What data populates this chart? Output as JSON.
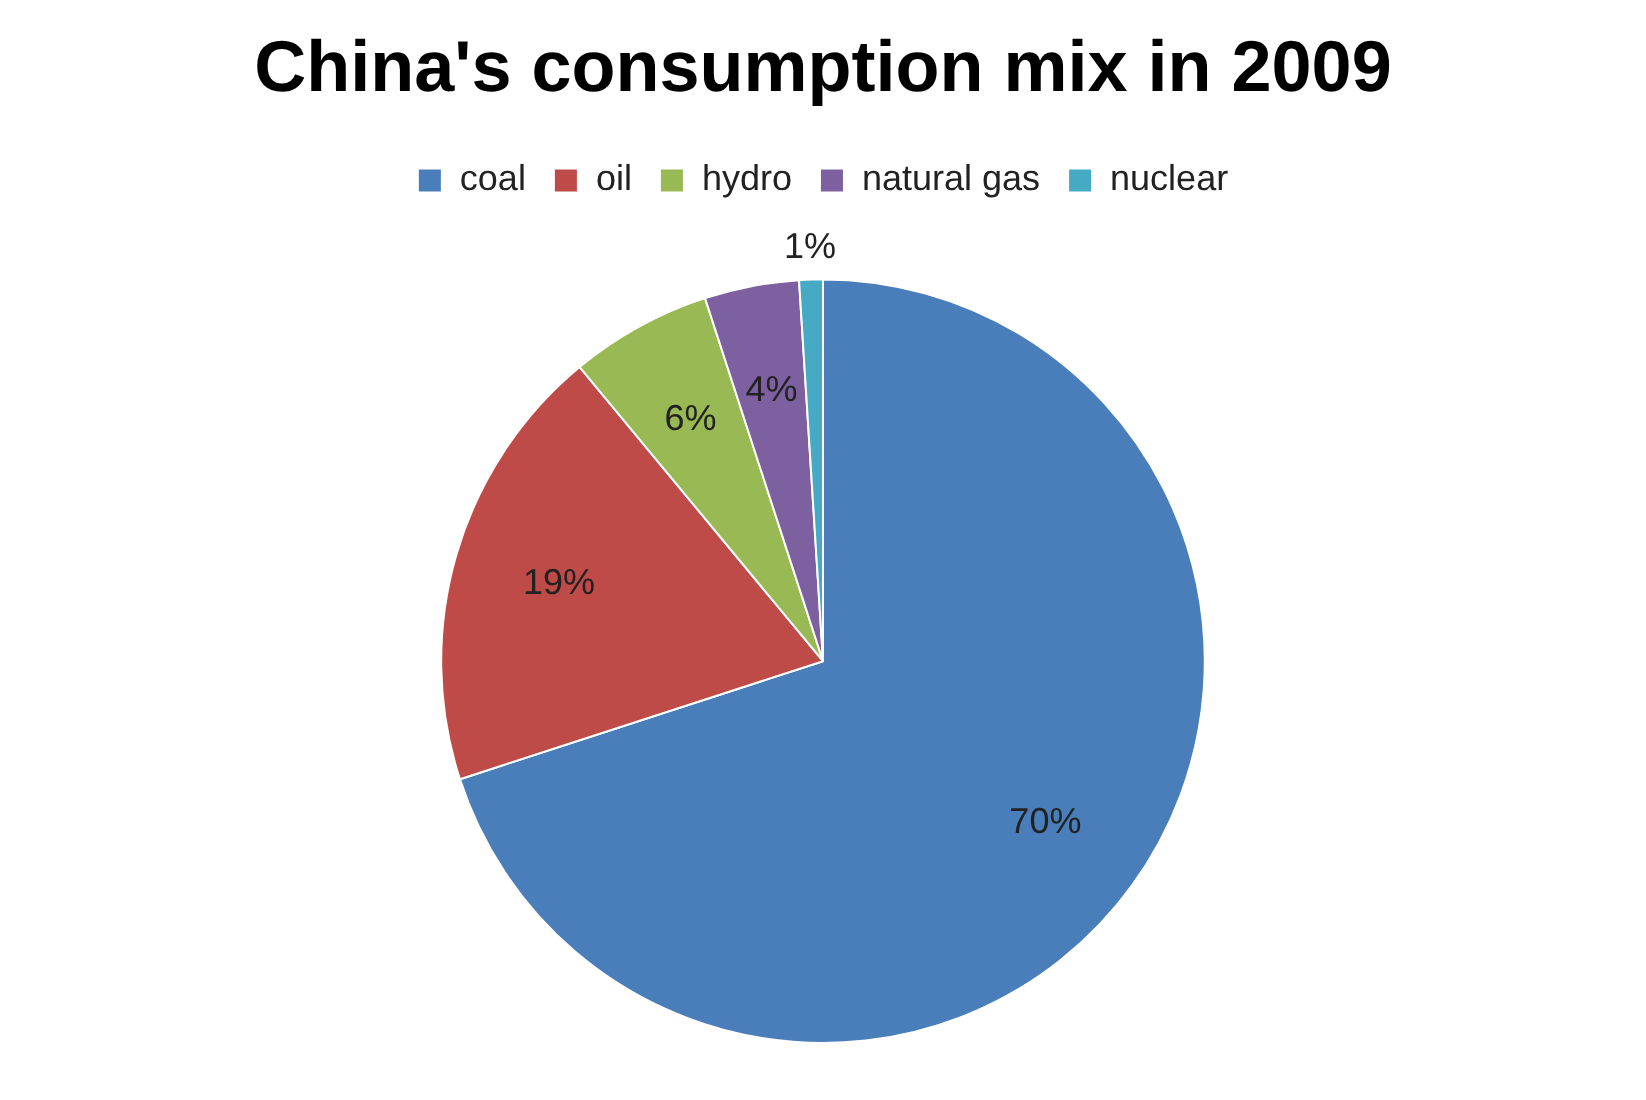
{
  "chart_data": {
    "type": "pie",
    "title": "China's consumption mix in 2009",
    "categories": [
      "coal",
      "oil",
      "hydro",
      "natural gas",
      "nuclear"
    ],
    "values": [
      70,
      19,
      6,
      4,
      1
    ],
    "colors": [
      "#4a7ebb",
      "#be4b48",
      "#98b954",
      "#7d60a0",
      "#46aac5"
    ],
    "value_labels": [
      "70%",
      "19%",
      "6%",
      "4%",
      "1%"
    ],
    "legend": "top"
  }
}
